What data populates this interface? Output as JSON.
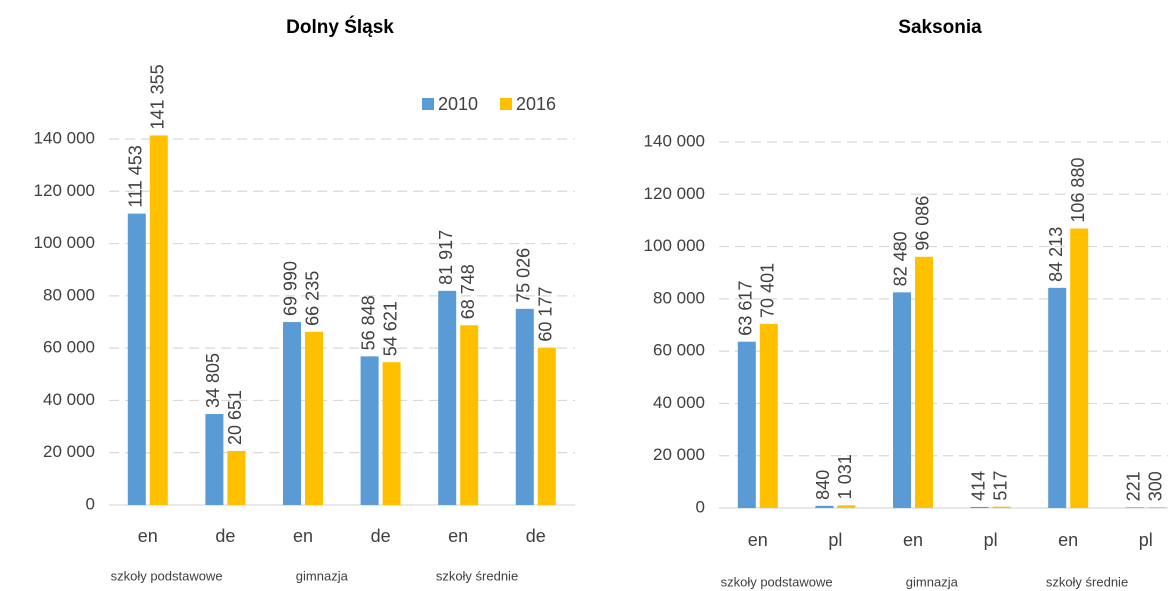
{
  "chart_data": [
    {
      "type": "bar",
      "title": "Dolny Śląsk",
      "categories": [
        "en",
        "de",
        "en",
        "de",
        "en",
        "de"
      ],
      "groups": [
        "szkoły podstawowe",
        "gimnazja",
        "szkoły średnie"
      ],
      "series": [
        {
          "name": "2010",
          "color": "#5b9bd5",
          "values": [
            111453,
            34805,
            69990,
            56848,
            81917,
            75026
          ],
          "value_labels": [
            "111 453",
            "34 805",
            "69 990",
            "56 848",
            "81 917",
            "75 026"
          ]
        },
        {
          "name": "2016",
          "color": "#ffc000",
          "values": [
            141355,
            20651,
            66235,
            54621,
            68748,
            60177
          ],
          "value_labels": [
            "141 355",
            "20 651",
            "66 235",
            "54 621",
            "68 748",
            "60 177"
          ]
        }
      ],
      "ylim": [
        0,
        140000
      ],
      "yticks": [
        0,
        {
          "value": 20000,
          "label": "20 000"
        },
        {
          "value": 40000,
          "label": "40 000"
        },
        {
          "value": 60000,
          "label": "60 000"
        },
        {
          "value": 80000,
          "label": "80 000"
        },
        {
          "value": 100000,
          "label": "100 000"
        },
        {
          "value": 120000,
          "label": "120 000"
        },
        {
          "value": 140000,
          "label": "140 000"
        }
      ],
      "grid": true,
      "legend": "top-right"
    },
    {
      "type": "bar",
      "title": "Saksonia",
      "categories": [
        "en",
        "pl",
        "en",
        "pl",
        "en",
        "pl"
      ],
      "groups": [
        "szkoły podstawowe",
        "gimnazja",
        "szkoły średnie"
      ],
      "series": [
        {
          "color": "#5b9bd5",
          "values": [
            63617,
            840,
            82480,
            414,
            84213,
            221
          ],
          "value_labels": [
            "63 617",
            "840",
            "82 480",
            "414",
            "84 213",
            "221"
          ]
        },
        {
          "color": "#ffc000",
          "values": [
            70401,
            1031,
            96086,
            517,
            106880,
            300
          ],
          "value_labels": [
            "70 401",
            "1 031",
            "96 086",
            "517",
            "106 880",
            "300"
          ]
        }
      ],
      "ylim": [
        0,
        140000
      ],
      "yticks": [
        0,
        {
          "value": 20000,
          "label": "20 000"
        },
        {
          "value": 40000,
          "label": "40 000"
        },
        {
          "value": 60000,
          "label": "60 000"
        },
        {
          "value": 80000,
          "label": "80 000"
        },
        {
          "value": 100000,
          "label": "100 000"
        },
        {
          "value": 120000,
          "label": "120 000"
        },
        {
          "value": 140000,
          "label": "140 000"
        }
      ],
      "grid": true
    }
  ]
}
